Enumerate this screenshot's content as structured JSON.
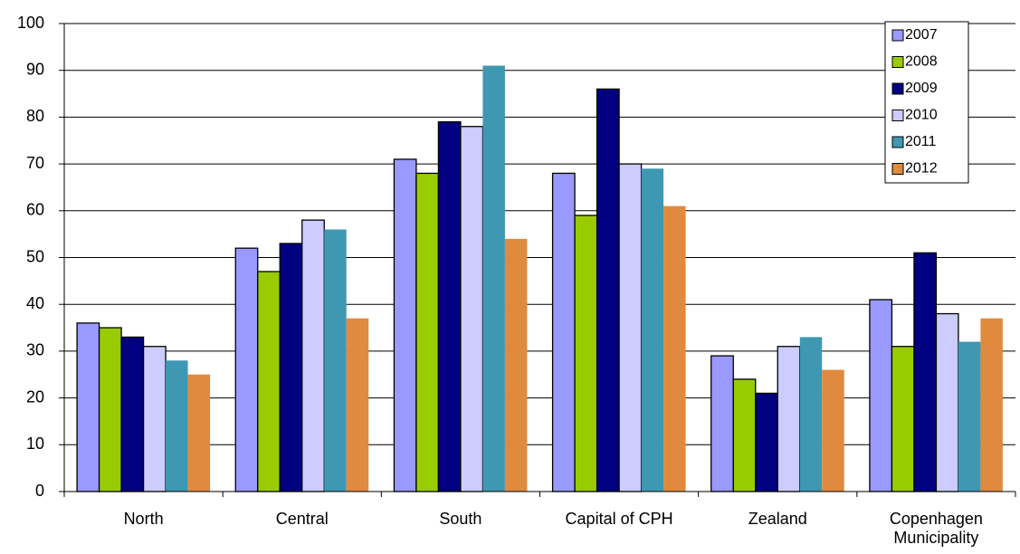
{
  "chart_data": {
    "type": "bar",
    "categories": [
      "North",
      "Central",
      "South",
      "Capital of CPH",
      "Zealand",
      "Copenhagen Municipality"
    ],
    "series": [
      {
        "name": "2007",
        "color": "#9999ff",
        "values": [
          36,
          52,
          71,
          68,
          29,
          41
        ]
      },
      {
        "name": "2008",
        "color": "#99cc00",
        "values": [
          35,
          47,
          68,
          59,
          24,
          31
        ]
      },
      {
        "name": "2009",
        "color": "#000080",
        "values": [
          33,
          53,
          79,
          86,
          21,
          51
        ]
      },
      {
        "name": "2010",
        "color": "#ccccff",
        "values": [
          31,
          58,
          78,
          70,
          31,
          38
        ]
      },
      {
        "name": "2011",
        "color": "#3f98b2",
        "values": [
          28,
          56,
          91,
          69,
          33,
          32
        ]
      },
      {
        "name": "2012",
        "color": "#e08a3f",
        "values": [
          25,
          37,
          54,
          61,
          26,
          37
        ]
      }
    ],
    "ylim": [
      0,
      100
    ],
    "yticks": [
      0,
      10,
      20,
      30,
      40,
      50,
      60,
      70,
      80,
      90,
      100
    ],
    "grid": true,
    "legend": "top-right"
  }
}
